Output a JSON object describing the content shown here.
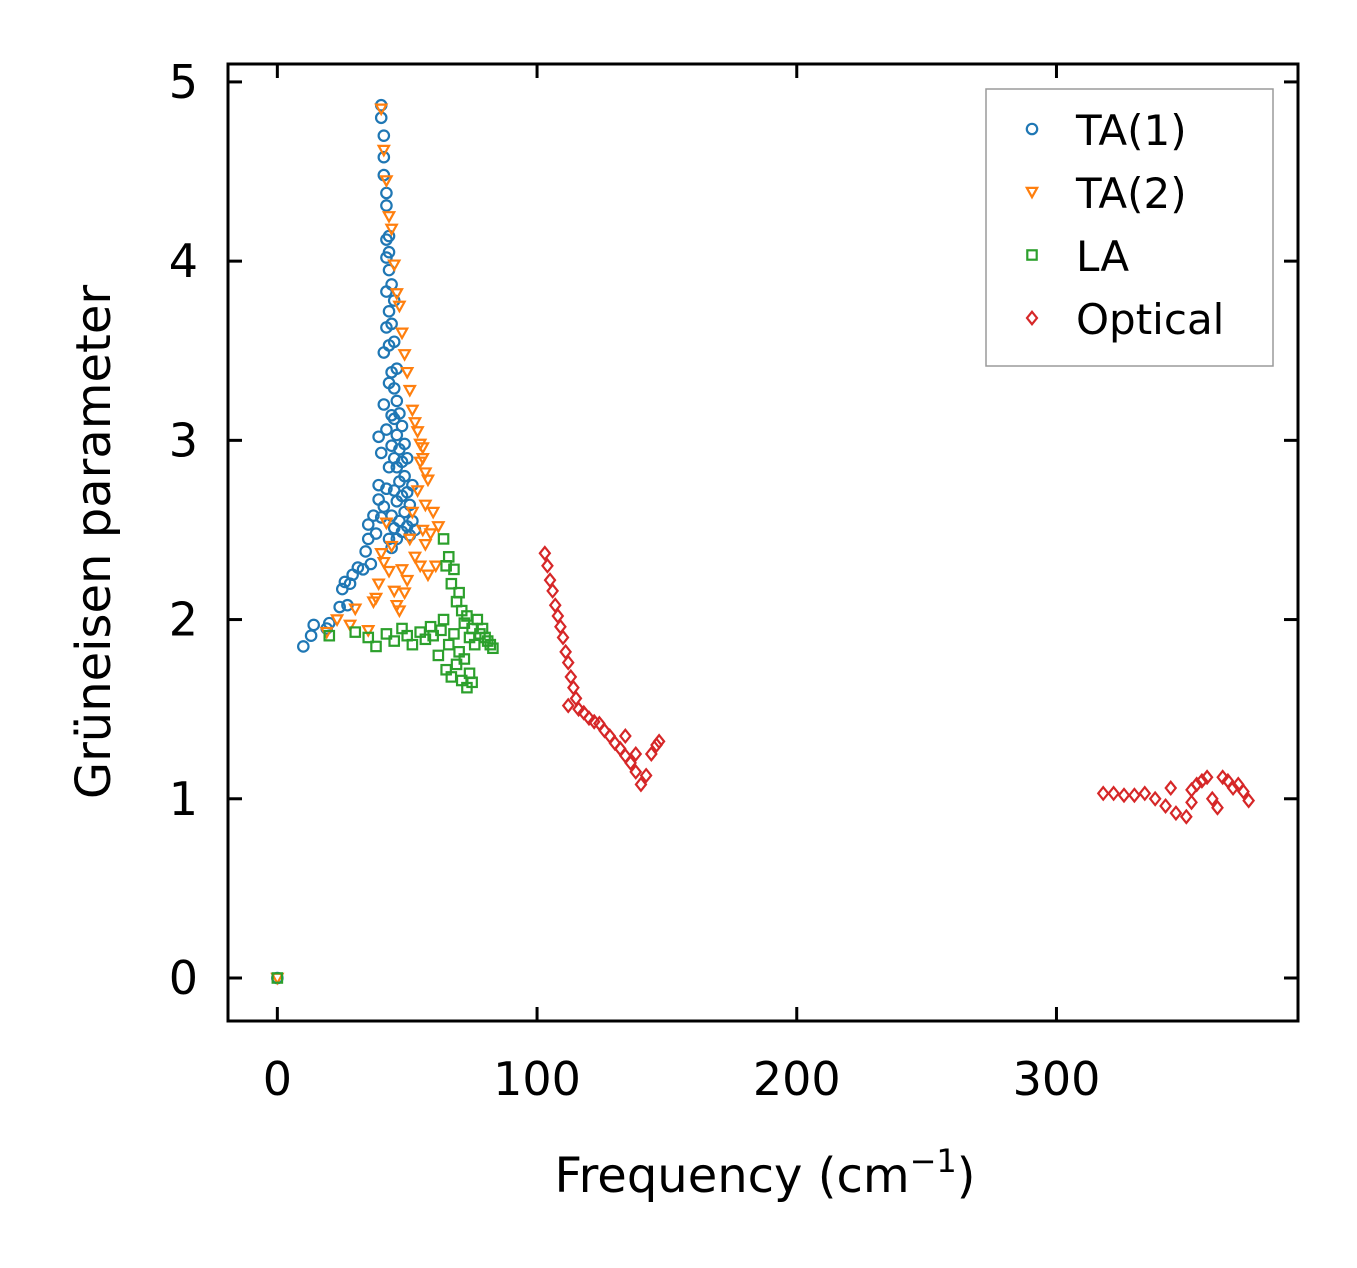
{
  "chart_data": {
    "type": "scatter",
    "title": "",
    "xlabel": "Frequency (cm",
    "xlabel_sup": "−1",
    "xlabel_close": ")",
    "ylabel": "Grüneisen parameter",
    "xlim": [
      -19,
      393
    ],
    "ylim": [
      -0.24,
      5.1
    ],
    "xticks": [
      0,
      100,
      200,
      300
    ],
    "yticks": [
      0,
      1,
      2,
      3,
      4,
      5
    ],
    "legend_position": "top-right",
    "series": [
      {
        "name": "TA(1)",
        "marker": "circle",
        "color": "#1f77b4",
        "points": [
          [
            0,
            0
          ],
          [
            10,
            1.85
          ],
          [
            13,
            1.91
          ],
          [
            14,
            1.97
          ],
          [
            19,
            1.95
          ],
          [
            20,
            1.98
          ],
          [
            24,
            2.07
          ],
          [
            25,
            2.17
          ],
          [
            26,
            2.21
          ],
          [
            27,
            2.08
          ],
          [
            28,
            2.2
          ],
          [
            29,
            2.25
          ],
          [
            31,
            2.29
          ],
          [
            33,
            2.28
          ],
          [
            34,
            2.38
          ],
          [
            35,
            2.45
          ],
          [
            35,
            2.53
          ],
          [
            36,
            2.31
          ],
          [
            37,
            2.58
          ],
          [
            38,
            2.48
          ],
          [
            39,
            2.67
          ],
          [
            39,
            2.75
          ],
          [
            39,
            3.02
          ],
          [
            40,
            2.57
          ],
          [
            40,
            2.93
          ],
          [
            41,
            2.63
          ],
          [
            41,
            3.2
          ],
          [
            41,
            3.49
          ],
          [
            42,
            2.73
          ],
          [
            42,
            3.06
          ],
          [
            42,
            3.63
          ],
          [
            42,
            3.83
          ],
          [
            42,
            4.02
          ],
          [
            42,
            4.12
          ],
          [
            43,
            2.45
          ],
          [
            43,
            2.85
          ],
          [
            43,
            3.32
          ],
          [
            43,
            3.53
          ],
          [
            43,
            3.72
          ],
          [
            43,
            3.95
          ],
          [
            44,
            2.4
          ],
          [
            44,
            2.58
          ],
          [
            44,
            2.97
          ],
          [
            44,
            3.14
          ],
          [
            44,
            3.38
          ],
          [
            44,
            3.65
          ],
          [
            44,
            3.87
          ],
          [
            45,
            2.51
          ],
          [
            45,
            2.72
          ],
          [
            45,
            2.9
          ],
          [
            45,
            3.12
          ],
          [
            45,
            3.29
          ],
          [
            45,
            3.55
          ],
          [
            45,
            3.78
          ],
          [
            46,
            2.45
          ],
          [
            46,
            2.66
          ],
          [
            46,
            2.85
          ],
          [
            46,
            3.03
          ],
          [
            46,
            3.22
          ],
          [
            46,
            3.4
          ],
          [
            47,
            2.55
          ],
          [
            47,
            2.77
          ],
          [
            47,
            2.95
          ],
          [
            47,
            3.15
          ],
          [
            48,
            2.49
          ],
          [
            48,
            2.69
          ],
          [
            48,
            2.88
          ],
          [
            48,
            3.08
          ],
          [
            49,
            2.6
          ],
          [
            49,
            2.8
          ],
          [
            49,
            2.98
          ],
          [
            50,
            2.52
          ],
          [
            50,
            2.71
          ],
          [
            50,
            2.9
          ],
          [
            51,
            2.47
          ],
          [
            51,
            2.64
          ],
          [
            52,
            2.55
          ],
          [
            52,
            2.75
          ],
          [
            53,
            2.5
          ],
          [
            40,
            4.87
          ],
          [
            40,
            4.8
          ],
          [
            41,
            4.7
          ],
          [
            41,
            4.58
          ],
          [
            41,
            4.48
          ],
          [
            42,
            4.38
          ],
          [
            42,
            4.31
          ],
          [
            43,
            4.14
          ],
          [
            43,
            4.05
          ]
        ]
      },
      {
        "name": "TA(2)",
        "marker": "triangle",
        "color": "#ff7f0e",
        "points": [
          [
            0,
            0
          ],
          [
            19,
            1.93
          ],
          [
            23,
            2.0
          ],
          [
            28,
            1.97
          ],
          [
            30,
            2.06
          ],
          [
            35,
            1.94
          ],
          [
            37,
            2.1
          ],
          [
            38,
            2.12
          ],
          [
            39,
            2.2
          ],
          [
            40,
            2.37
          ],
          [
            41,
            2.32
          ],
          [
            42,
            2.54
          ],
          [
            43,
            2.27
          ],
          [
            44,
            2.41
          ],
          [
            45,
            2.16
          ],
          [
            46,
            2.08
          ],
          [
            47,
            2.05
          ],
          [
            48,
            2.28
          ],
          [
            49,
            2.15
          ],
          [
            50,
            2.22
          ],
          [
            51,
            2.45
          ],
          [
            52,
            2.6
          ],
          [
            53,
            2.35
          ],
          [
            54,
            2.72
          ],
          [
            55,
            2.88
          ],
          [
            55,
            2.3
          ],
          [
            56,
            2.5
          ],
          [
            56,
            2.96
          ],
          [
            57,
            2.42
          ],
          [
            57,
            2.64
          ],
          [
            58,
            2.25
          ],
          [
            58,
            2.78
          ],
          [
            59,
            2.48
          ],
          [
            60,
            2.6
          ],
          [
            61,
            2.3
          ],
          [
            62,
            2.52
          ],
          [
            40,
            4.85
          ],
          [
            41,
            4.62
          ],
          [
            42,
            4.45
          ],
          [
            43,
            4.25
          ],
          [
            44,
            4.18
          ],
          [
            45,
            3.98
          ],
          [
            46,
            3.82
          ],
          [
            47,
            3.75
          ],
          [
            48,
            3.6
          ],
          [
            49,
            3.48
          ],
          [
            50,
            3.38
          ],
          [
            51,
            3.28
          ],
          [
            52,
            3.17
          ],
          [
            53,
            3.1
          ],
          [
            54,
            3.05
          ],
          [
            55,
            2.98
          ],
          [
            56,
            2.9
          ],
          [
            57,
            2.82
          ]
        ]
      },
      {
        "name": "LA",
        "marker": "square",
        "color": "#2ca02c",
        "points": [
          [
            0,
            0
          ],
          [
            20,
            1.91
          ],
          [
            30,
            1.93
          ],
          [
            35,
            1.9
          ],
          [
            38,
            1.85
          ],
          [
            42,
            1.92
          ],
          [
            45,
            1.88
          ],
          [
            48,
            1.95
          ],
          [
            50,
            1.91
          ],
          [
            52,
            1.86
          ],
          [
            55,
            1.93
          ],
          [
            57,
            1.89
          ],
          [
            59,
            1.96
          ],
          [
            60,
            1.91
          ],
          [
            62,
            1.8
          ],
          [
            63,
            1.94
          ],
          [
            64,
            2.45
          ],
          [
            64,
            2.0
          ],
          [
            65,
            2.3
          ],
          [
            65,
            1.72
          ],
          [
            66,
            2.35
          ],
          [
            66,
            1.86
          ],
          [
            67,
            2.2
          ],
          [
            67,
            1.68
          ],
          [
            68,
            2.28
          ],
          [
            68,
            1.92
          ],
          [
            69,
            2.1
          ],
          [
            69,
            1.75
          ],
          [
            70,
            2.15
          ],
          [
            70,
            1.82
          ],
          [
            71,
            2.05
          ],
          [
            71,
            1.66
          ],
          [
            72,
            1.98
          ],
          [
            72,
            1.78
          ],
          [
            73,
            2.02
          ],
          [
            73,
            1.62
          ],
          [
            74,
            1.9
          ],
          [
            74,
            1.7
          ],
          [
            75,
            1.95
          ],
          [
            75,
            1.65
          ],
          [
            76,
            1.86
          ],
          [
            77,
            2.0
          ],
          [
            78,
            1.92
          ],
          [
            79,
            1.95
          ],
          [
            80,
            1.9
          ],
          [
            81,
            1.88
          ],
          [
            82,
            1.86
          ],
          [
            83,
            1.84
          ]
        ]
      },
      {
        "name": "Optical",
        "marker": "diamond",
        "color": "#d62728",
        "points": [
          [
            103,
            2.37
          ],
          [
            104,
            2.3
          ],
          [
            105,
            2.22
          ],
          [
            106,
            2.16
          ],
          [
            107,
            2.08
          ],
          [
            108,
            2.02
          ],
          [
            109,
            1.96
          ],
          [
            110,
            1.9
          ],
          [
            111,
            1.82
          ],
          [
            112,
            1.76
          ],
          [
            112,
            1.52
          ],
          [
            113,
            1.68
          ],
          [
            114,
            1.62
          ],
          [
            115,
            1.56
          ],
          [
            116,
            1.5
          ],
          [
            118,
            1.48
          ],
          [
            120,
            1.45
          ],
          [
            122,
            1.43
          ],
          [
            124,
            1.42
          ],
          [
            126,
            1.38
          ],
          [
            128,
            1.35
          ],
          [
            130,
            1.31
          ],
          [
            132,
            1.28
          ],
          [
            134,
            1.24
          ],
          [
            136,
            1.2
          ],
          [
            138,
            1.15
          ],
          [
            140,
            1.08
          ],
          [
            142,
            1.13
          ],
          [
            144,
            1.25
          ],
          [
            146,
            1.3
          ],
          [
            147,
            1.32
          ],
          [
            138,
            1.25
          ],
          [
            134,
            1.35
          ],
          [
            318,
            1.03
          ],
          [
            322,
            1.03
          ],
          [
            326,
            1.02
          ],
          [
            330,
            1.02
          ],
          [
            334,
            1.03
          ],
          [
            338,
            1.0
          ],
          [
            342,
            0.96
          ],
          [
            346,
            0.92
          ],
          [
            350,
            0.9
          ],
          [
            352,
            1.05
          ],
          [
            354,
            1.08
          ],
          [
            356,
            1.1
          ],
          [
            358,
            1.12
          ],
          [
            360,
            1.0
          ],
          [
            362,
            0.95
          ],
          [
            364,
            1.12
          ],
          [
            366,
            1.1
          ],
          [
            368,
            1.06
          ],
          [
            370,
            1.08
          ],
          [
            372,
            1.04
          ],
          [
            374,
            0.99
          ],
          [
            344,
            1.06
          ],
          [
            352,
            0.98
          ]
        ]
      }
    ]
  }
}
